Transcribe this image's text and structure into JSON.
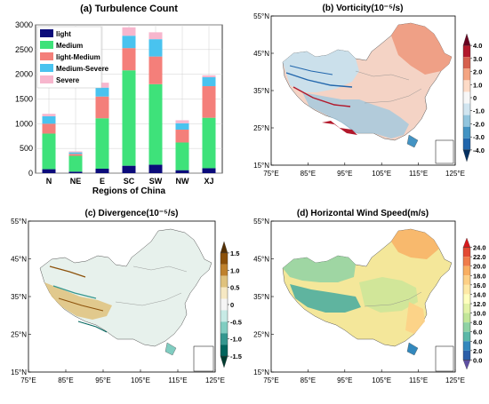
{
  "chart_data": [
    {
      "type": "bar",
      "title": "(a) Turbulence Count",
      "xlabel": "Regions of China",
      "ylabel": "",
      "categories": [
        "N",
        "NE",
        "E",
        "SC",
        "SW",
        "NW",
        "XJ"
      ],
      "ylim": [
        0,
        3000
      ],
      "yticks": [
        0,
        500,
        1000,
        1500,
        2000,
        2500,
        3000
      ],
      "legend_position": "top-left",
      "series": [
        {
          "name": "light",
          "color": "#0b0b7a",
          "values": [
            80,
            30,
            90,
            150,
            170,
            60,
            100
          ]
        },
        {
          "name": "Medium",
          "color": "#3ee27a",
          "values": [
            720,
            320,
            1020,
            1930,
            1630,
            560,
            1020
          ]
        },
        {
          "name": "light-Medium",
          "color": "#f47f7a",
          "values": [
            200,
            40,
            440,
            450,
            560,
            260,
            640
          ]
        },
        {
          "name": "Medium-Severe",
          "color": "#49c3ef",
          "values": [
            150,
            30,
            180,
            250,
            350,
            130,
            180
          ]
        },
        {
          "name": "Severe",
          "color": "#f7b6cd",
          "values": [
            50,
            20,
            100,
            170,
            140,
            60,
            40
          ]
        }
      ]
    },
    {
      "type": "heatmap",
      "title": "(b) Vorticity(10⁻⁵/s)",
      "colorbar_ticks": [
        "4.0",
        "3.0",
        "2.0",
        "1.0",
        "0",
        "-1.0",
        "-2.0",
        "-3.0",
        "-4.0"
      ],
      "colorbar_colors": [
        "#67001f",
        "#b2182b",
        "#d6604d",
        "#f4a582",
        "#fddbc7",
        "#f7f7f7",
        "#d1e5f0",
        "#92c5de",
        "#4393c3",
        "#2166ac",
        "#053061"
      ]
    },
    {
      "type": "heatmap",
      "title": "(c) Divergence(10⁻⁵/s)",
      "colorbar_ticks": [
        "1.5",
        "1.0",
        "0.5",
        "0",
        "-0.5",
        "-1.0",
        "-1.5"
      ],
      "colorbar_colors": [
        "#543005",
        "#8c510a",
        "#bf812d",
        "#dfc27d",
        "#f6e8c3",
        "#f5f5f5",
        "#c7eae5",
        "#80cdc1",
        "#35978f",
        "#01665e",
        "#003c30"
      ]
    },
    {
      "type": "heatmap",
      "title": "(d) Horizontal Wind Speed(m/s)",
      "colorbar_ticks": [
        "24.0",
        "22.0",
        "20.0",
        "18.0",
        "16.0",
        "14.0",
        "12.0",
        "10.0",
        "8.0",
        "6.0",
        "4.0",
        "2.0",
        "0.0"
      ],
      "colorbar_colors": [
        "#d7191c",
        "#e34a33",
        "#f07c4a",
        "#f9ae61",
        "#fdd086",
        "#fee9a6",
        "#ffffbf",
        "#e3f3a8",
        "#c2e699",
        "#8fd2a4",
        "#5bb8a8",
        "#3288bd",
        "#2b5ea8",
        "#5e4fa2"
      ]
    }
  ],
  "map_axes": {
    "lon_ticks": [
      "75°E",
      "85°E",
      "95°E",
      "105°E",
      "115°E",
      "125°E"
    ],
    "lat_ticks": [
      "55°N",
      "45°N",
      "35°N",
      "25°N",
      "15°N"
    ]
  }
}
